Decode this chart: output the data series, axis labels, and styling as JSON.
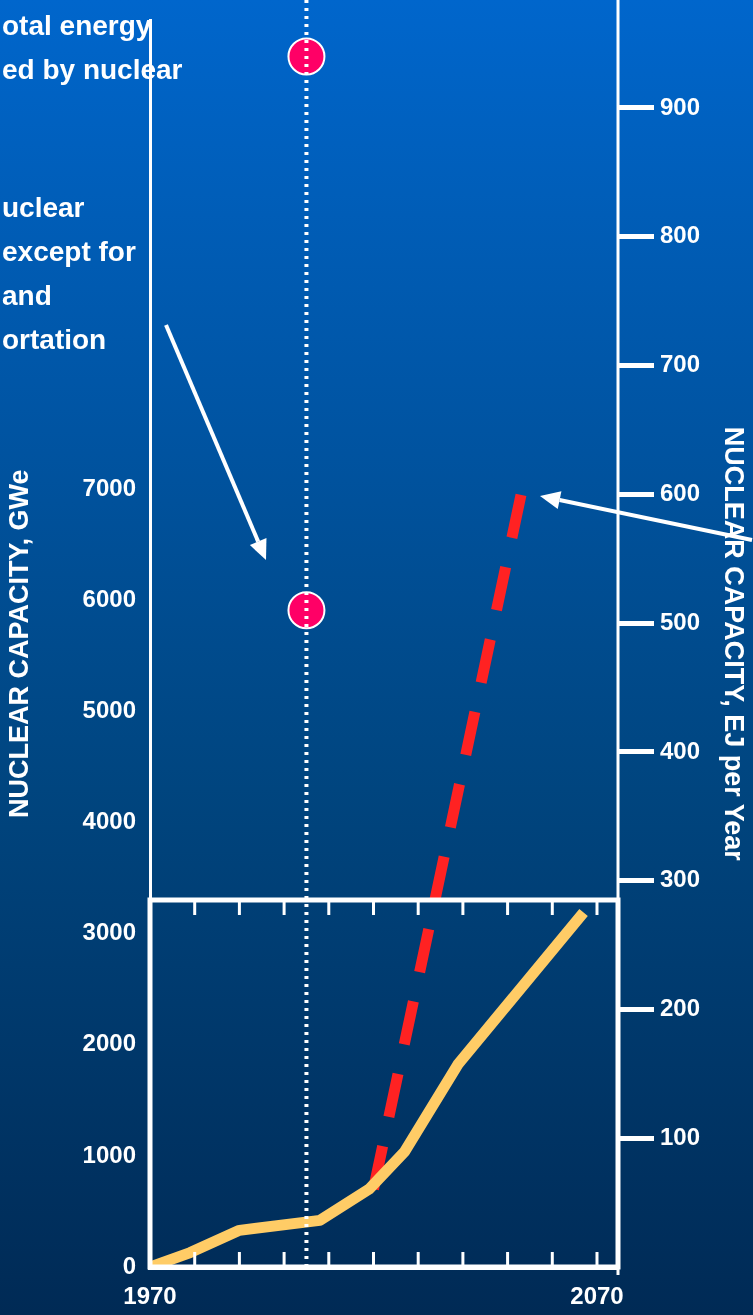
{
  "chart_data": {
    "type": "line",
    "ylabel": "NUCLEAR CAPACITY, GWe",
    "y2label": "NUCLEAR CAPACITY, EJ per Year",
    "annotations": [
      "otal energy\ned by nuclear",
      "uclear\nexcept for\nand\nortation"
    ],
    "xlim": [
      1970,
      2074.7
    ],
    "xticks": [
      1970,
      {
        "value": 1980,
        "label": null
      },
      {
        "value": 1990,
        "label": null
      },
      {
        "value": 2000,
        "label": null
      },
      {
        "value": 2010,
        "label": null
      },
      {
        "value": 2020,
        "label": null
      },
      {
        "value": 2030,
        "label": null
      },
      {
        "value": 2040,
        "label": null
      },
      {
        "value": 2050,
        "label": null
      },
      {
        "value": 2060,
        "label": null
      },
      2070
    ],
    "ylim": [
      0,
      11220
    ],
    "yticks": [
      0,
      1000,
      2000,
      3000,
      4000,
      5000,
      6000,
      7000
    ],
    "y2lim": [
      0,
      968
    ],
    "y2ticks": [
      100,
      200,
      300,
      400,
      500,
      600,
      700,
      800,
      900
    ],
    "ref_lines": [
      {
        "axis": "x",
        "value": 2005,
        "color": "#ffffff",
        "line_style": "dotted"
      }
    ],
    "series": [
      {
        "type": "line",
        "color": "#ffcc66",
        "x": [
          1970,
          1979,
          1990,
          2008,
          2019,
          2027,
          2039,
          2067
        ],
        "values": [
          0,
          130,
          330,
          420,
          700,
          1040,
          1830,
          3190
        ]
      },
      {
        "type": "line",
        "color": "#ff2222",
        "line_style": "dashed",
        "x": [
          2020,
          2053
        ],
        "values": [
          700,
          6950
        ]
      },
      {
        "type": "scatter",
        "color": "#ff0066",
        "axis": "y2",
        "marker": "circle",
        "x": [
          2005,
          2005
        ],
        "values": [
          940,
          510
        ]
      }
    ]
  }
}
